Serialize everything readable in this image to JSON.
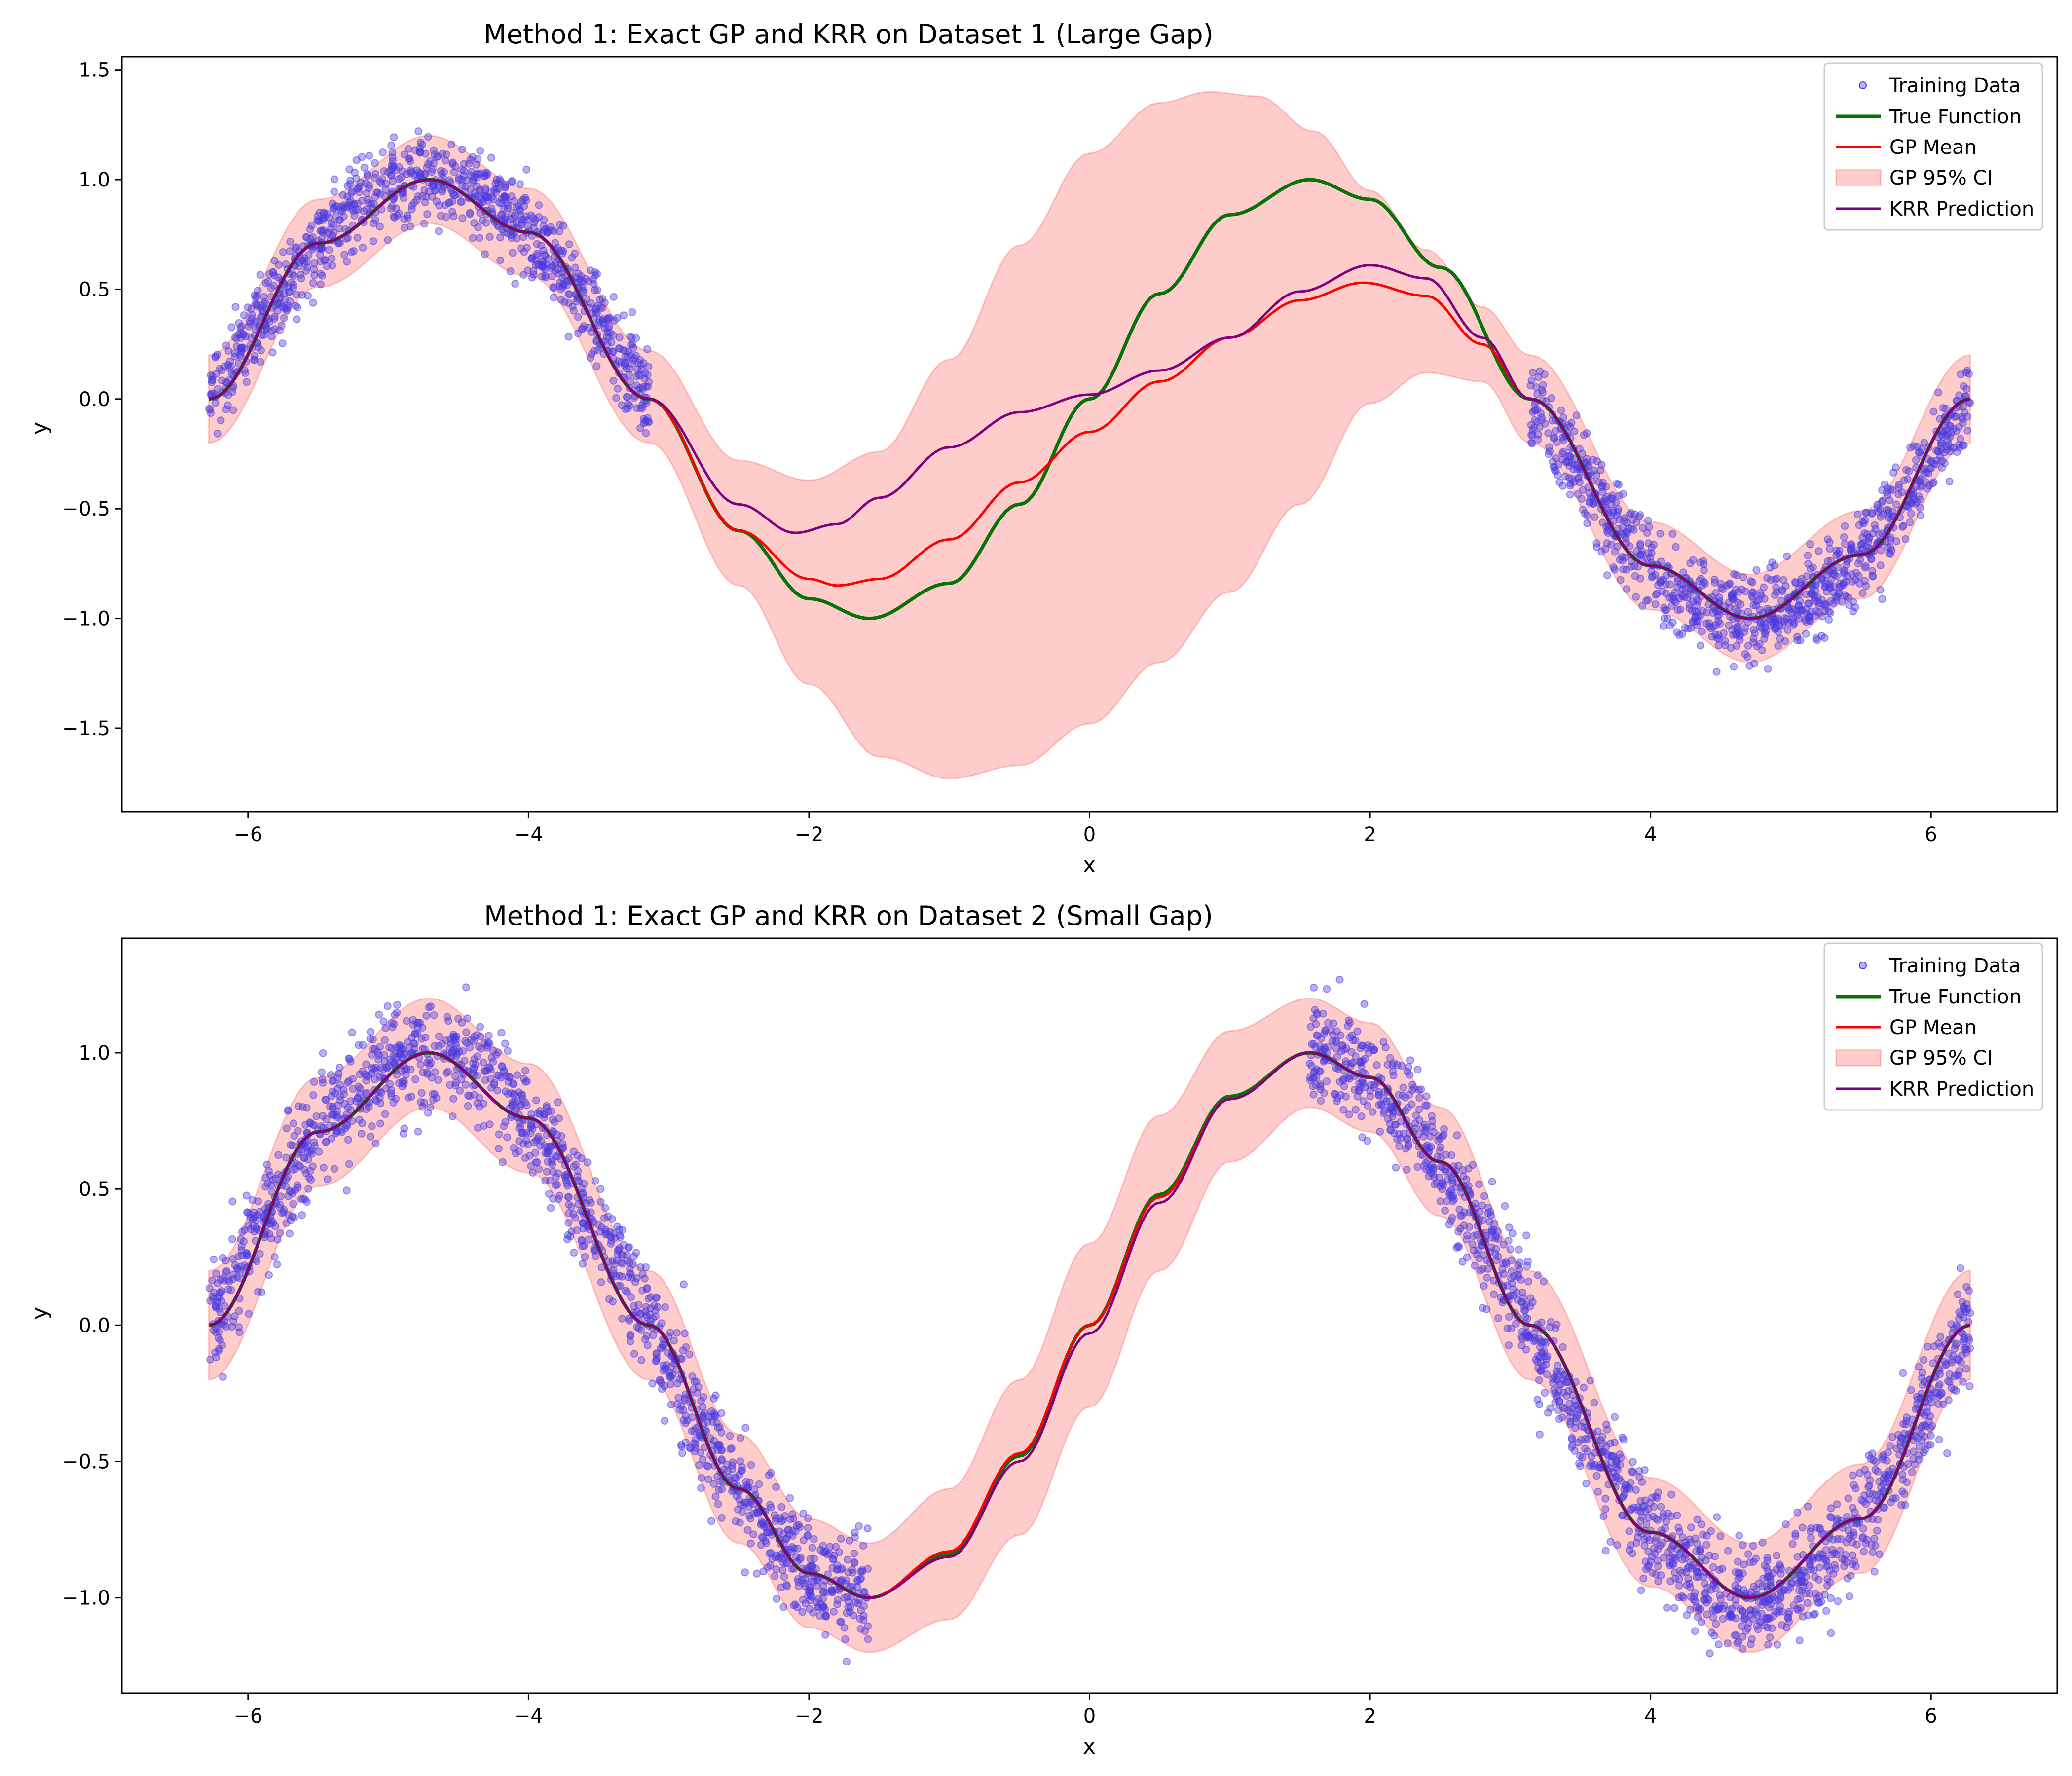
{
  "figure": {
    "panels": [
      {
        "title": "Method 1: Exact GP and KRR on Dataset 1 (Large Gap)",
        "xlabel": "x",
        "ylabel": "y"
      },
      {
        "title": "Method 1: Exact GP and KRR on Dataset 2 (Small Gap)",
        "xlabel": "x",
        "ylabel": "y"
      }
    ],
    "legend": {
      "training_data": "Training Data",
      "true_function": "True Function",
      "gp_mean": "GP Mean",
      "gp_ci": "GP 95% CI",
      "krr": "KRR Prediction"
    }
  },
  "colors": {
    "training_data": "#4a3ae0",
    "true_function": "#087208",
    "gp_mean": "#ff0000",
    "gp_ci": "#ffb3b3",
    "krr": "#800080"
  },
  "chart_data": [
    {
      "type": "line",
      "title": "Method 1: Exact GP and KRR on Dataset 1 (Large Gap)",
      "xlabel": "x",
      "ylabel": "y",
      "xlim": [
        -6.9,
        6.9
      ],
      "ylim": [
        -1.88,
        1.56
      ],
      "xticks": [
        -6,
        -4,
        -2,
        0,
        2,
        4,
        6
      ],
      "yticks": [
        -1.5,
        -1.0,
        -0.5,
        0.0,
        0.5,
        1.0,
        1.5
      ],
      "xtick_labels": [
        "−6",
        "−4",
        "−2",
        "0",
        "2",
        "4",
        "6"
      ],
      "ytick_labels": [
        "−1.5",
        "−1.0",
        "−0.5",
        "0.0",
        "0.5",
        "1.0",
        "1.5"
      ],
      "legend_position": "top-right",
      "training_data": {
        "x_ranges": [
          [
            -6.28,
            -3.14
          ],
          [
            3.14,
            6.28
          ]
        ],
        "function": "sin(x)",
        "noise_std": 0.1,
        "approx_count": 2000
      },
      "series": [
        {
          "name": "True Function",
          "x": [
            -6.28,
            -5.5,
            -4.71,
            -4.0,
            -3.14,
            -2.5,
            -2.0,
            -1.57,
            -1.0,
            -0.5,
            0.0,
            0.5,
            1.0,
            1.57,
            2.0,
            2.5,
            3.14,
            4.0,
            4.71,
            5.5,
            6.28
          ],
          "y": [
            0.0,
            0.71,
            1.0,
            0.76,
            0.0,
            -0.6,
            -0.91,
            -1.0,
            -0.84,
            -0.48,
            0.0,
            0.48,
            0.84,
            1.0,
            0.91,
            0.6,
            0.0,
            -0.76,
            -1.0,
            -0.71,
            0.0
          ]
        },
        {
          "name": "GP Mean",
          "x": [
            -6.28,
            -5.5,
            -4.71,
            -4.0,
            -3.14,
            -2.5,
            -2.0,
            -1.8,
            -1.5,
            -1.0,
            -0.5,
            0.0,
            0.5,
            1.0,
            1.5,
            1.95,
            2.4,
            2.8,
            3.14,
            4.0,
            4.71,
            5.5,
            6.28
          ],
          "y": [
            0.0,
            0.71,
            1.0,
            0.76,
            0.0,
            -0.6,
            -0.82,
            -0.85,
            -0.82,
            -0.64,
            -0.38,
            -0.15,
            0.08,
            0.28,
            0.45,
            0.53,
            0.47,
            0.25,
            0.0,
            -0.76,
            -1.0,
            -0.71,
            0.0
          ]
        },
        {
          "name": "GP 95% CI upper",
          "x": [
            -6.28,
            -5.5,
            -4.71,
            -4.0,
            -3.14,
            -2.5,
            -2.0,
            -1.5,
            -1.0,
            -0.5,
            0.0,
            0.5,
            0.85,
            1.2,
            1.6,
            2.0,
            2.4,
            2.8,
            3.14,
            4.0,
            4.71,
            5.5,
            6.28
          ],
          "y": [
            0.2,
            0.91,
            1.2,
            0.96,
            0.22,
            -0.28,
            -0.37,
            -0.24,
            0.18,
            0.7,
            1.12,
            1.35,
            1.4,
            1.38,
            1.22,
            0.95,
            0.68,
            0.42,
            0.2,
            -0.56,
            -0.8,
            -0.51,
            0.2
          ]
        },
        {
          "name": "GP 95% CI lower",
          "x": [
            -6.28,
            -5.5,
            -4.71,
            -4.0,
            -3.14,
            -2.5,
            -2.0,
            -1.5,
            -1.0,
            -0.5,
            0.0,
            0.5,
            1.0,
            1.5,
            2.0,
            2.4,
            2.8,
            3.14,
            4.0,
            4.71,
            5.5,
            6.28
          ],
          "y": [
            -0.2,
            0.51,
            0.8,
            0.56,
            -0.2,
            -0.85,
            -1.3,
            -1.63,
            -1.73,
            -1.67,
            -1.48,
            -1.2,
            -0.88,
            -0.48,
            -0.02,
            0.12,
            0.08,
            -0.2,
            -0.96,
            -1.2,
            -0.91,
            -0.2
          ]
        },
        {
          "name": "KRR Prediction",
          "x": [
            -6.28,
            -5.5,
            -4.71,
            -4.0,
            -3.14,
            -2.5,
            -2.1,
            -1.8,
            -1.5,
            -1.0,
            -0.5,
            0.0,
            0.5,
            1.0,
            1.5,
            2.0,
            2.4,
            2.8,
            3.14,
            4.0,
            4.71,
            5.5,
            6.28
          ],
          "y": [
            0.0,
            0.71,
            1.0,
            0.76,
            0.0,
            -0.48,
            -0.61,
            -0.57,
            -0.45,
            -0.22,
            -0.06,
            0.02,
            0.13,
            0.28,
            0.49,
            0.61,
            0.55,
            0.28,
            0.0,
            -0.76,
            -1.0,
            -0.71,
            0.0
          ]
        }
      ]
    },
    {
      "type": "line",
      "title": "Method 1: Exact GP and KRR on Dataset 2 (Small Gap)",
      "xlabel": "x",
      "ylabel": "y",
      "xlim": [
        -6.9,
        6.9
      ],
      "ylim": [
        -1.35,
        1.42
      ],
      "xticks": [
        -6,
        -4,
        -2,
        0,
        2,
        4,
        6
      ],
      "yticks": [
        -1.0,
        -0.5,
        0.0,
        0.5,
        1.0
      ],
      "xtick_labels": [
        "−6",
        "−4",
        "−2",
        "0",
        "2",
        "4",
        "6"
      ],
      "ytick_labels": [
        "−1.0",
        "−0.5",
        "0.0",
        "0.5",
        "1.0"
      ],
      "legend_position": "top-right",
      "training_data": {
        "x_ranges": [
          [
            -6.28,
            -1.57
          ],
          [
            1.57,
            6.28
          ]
        ],
        "function": "sin(x)",
        "noise_std": 0.1,
        "approx_count": 3000
      },
      "series": [
        {
          "name": "True Function",
          "x": [
            -6.28,
            -5.5,
            -4.71,
            -4.0,
            -3.14,
            -2.5,
            -2.0,
            -1.57,
            -1.0,
            -0.5,
            0.0,
            0.5,
            1.0,
            1.57,
            2.0,
            2.5,
            3.14,
            4.0,
            4.71,
            5.5,
            6.28
          ],
          "y": [
            0.0,
            0.71,
            1.0,
            0.76,
            0.0,
            -0.6,
            -0.91,
            -1.0,
            -0.84,
            -0.48,
            0.0,
            0.48,
            0.84,
            1.0,
            0.91,
            0.6,
            0.0,
            -0.76,
            -1.0,
            -0.71,
            0.0
          ]
        },
        {
          "name": "GP Mean",
          "x": [
            -6.28,
            -5.5,
            -4.71,
            -4.0,
            -3.14,
            -2.5,
            -2.0,
            -1.57,
            -1.0,
            -0.5,
            0.0,
            0.5,
            1.0,
            1.57,
            2.0,
            2.5,
            3.14,
            4.0,
            4.71,
            5.5,
            6.28
          ],
          "y": [
            0.0,
            0.71,
            1.0,
            0.76,
            0.0,
            -0.6,
            -0.91,
            -1.0,
            -0.83,
            -0.47,
            0.0,
            0.47,
            0.83,
            1.0,
            0.91,
            0.6,
            0.0,
            -0.76,
            -1.0,
            -0.71,
            0.0
          ]
        },
        {
          "name": "GP 95% CI upper",
          "x": [
            -6.28,
            -5.5,
            -4.71,
            -4.0,
            -3.14,
            -2.5,
            -2.0,
            -1.57,
            -1.0,
            -0.5,
            0.0,
            0.5,
            1.0,
            1.57,
            2.0,
            2.5,
            3.14,
            4.0,
            4.71,
            5.5,
            6.28
          ],
          "y": [
            0.2,
            0.91,
            1.2,
            0.96,
            0.2,
            -0.4,
            -0.71,
            -0.8,
            -0.6,
            -0.2,
            0.3,
            0.77,
            1.08,
            1.2,
            1.11,
            0.8,
            0.2,
            -0.56,
            -0.8,
            -0.51,
            0.2
          ]
        },
        {
          "name": "GP 95% CI lower",
          "x": [
            -6.28,
            -5.5,
            -4.71,
            -4.0,
            -3.14,
            -2.5,
            -2.0,
            -1.57,
            -1.0,
            -0.5,
            0.0,
            0.5,
            1.0,
            1.57,
            2.0,
            2.5,
            3.14,
            4.0,
            4.71,
            5.5,
            6.28
          ],
          "y": [
            -0.2,
            0.51,
            0.8,
            0.56,
            -0.2,
            -0.8,
            -1.11,
            -1.2,
            -1.08,
            -0.77,
            -0.3,
            0.2,
            0.6,
            0.8,
            0.71,
            0.4,
            -0.2,
            -0.96,
            -1.2,
            -0.91,
            -0.2
          ]
        },
        {
          "name": "KRR Prediction",
          "x": [
            -6.28,
            -5.5,
            -4.71,
            -4.0,
            -3.14,
            -2.5,
            -2.0,
            -1.57,
            -1.0,
            -0.5,
            0.0,
            0.5,
            1.0,
            1.57,
            2.0,
            2.5,
            3.14,
            4.0,
            4.71,
            5.5,
            6.28
          ],
          "y": [
            0.0,
            0.71,
            1.0,
            0.76,
            0.0,
            -0.6,
            -0.91,
            -1.0,
            -0.85,
            -0.5,
            -0.03,
            0.45,
            0.83,
            1.0,
            0.91,
            0.6,
            0.0,
            -0.76,
            -1.0,
            -0.71,
            0.0
          ]
        }
      ]
    }
  ]
}
